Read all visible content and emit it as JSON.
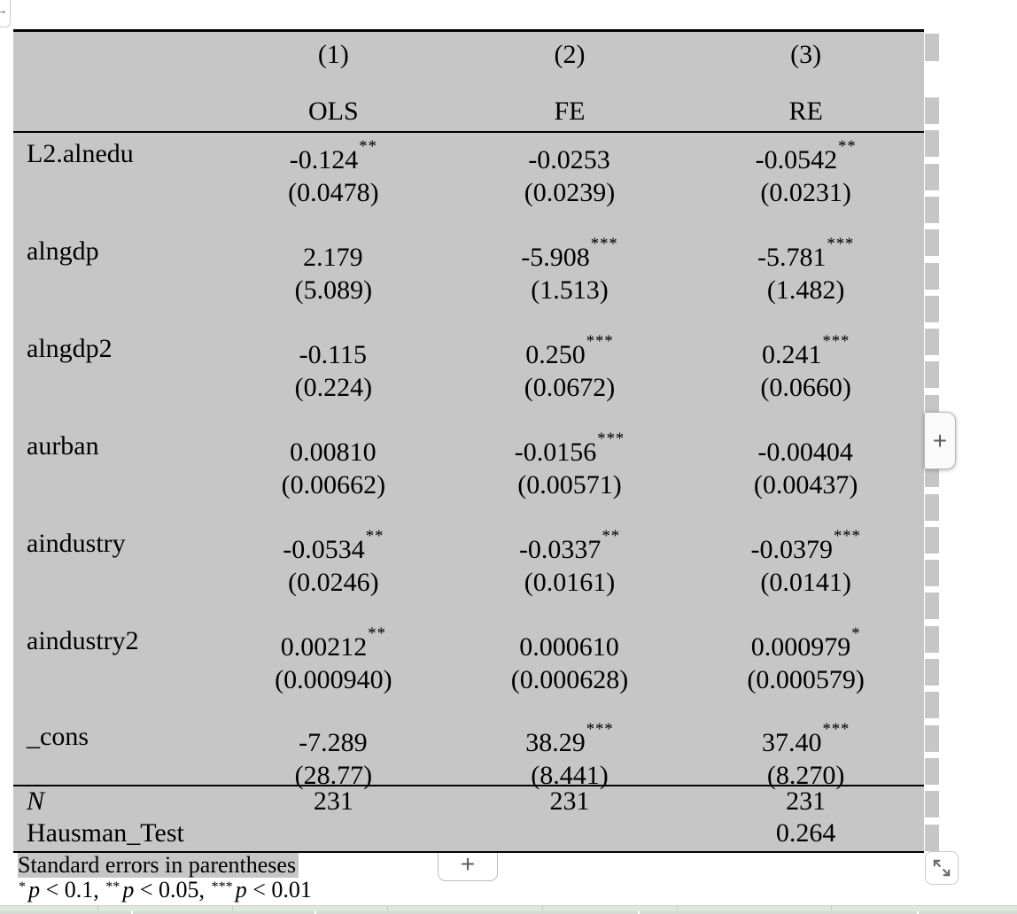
{
  "table": {
    "columns": [
      "(1)",
      "(2)",
      "(3)"
    ],
    "models": [
      "OLS",
      "FE",
      "RE"
    ],
    "rows": [
      {
        "label": "L2.alnedu",
        "cells": [
          {
            "coef": "-0.124",
            "stars": "**",
            "se": "(0.0478)"
          },
          {
            "coef": "-0.0253",
            "stars": "",
            "se": "(0.0239)"
          },
          {
            "coef": "-0.0542",
            "stars": "**",
            "se": "(0.0231)"
          }
        ]
      },
      {
        "label": "alngdp",
        "cells": [
          {
            "coef": "2.179",
            "stars": "",
            "se": "(5.089)"
          },
          {
            "coef": "-5.908",
            "stars": "***",
            "se": "(1.513)"
          },
          {
            "coef": "-5.781",
            "stars": "***",
            "se": "(1.482)"
          }
        ]
      },
      {
        "label": "alngdp2",
        "cells": [
          {
            "coef": "-0.115",
            "stars": "",
            "se": "(0.224)"
          },
          {
            "coef": "0.250",
            "stars": "***",
            "se": "(0.0672)"
          },
          {
            "coef": "0.241",
            "stars": "***",
            "se": "(0.0660)"
          }
        ]
      },
      {
        "label": "aurban",
        "cells": [
          {
            "coef": "0.00810",
            "stars": "",
            "se": "(0.00662)"
          },
          {
            "coef": "-0.0156",
            "stars": "***",
            "se": "(0.00571)"
          },
          {
            "coef": "-0.00404",
            "stars": "",
            "se": "(0.00437)"
          }
        ]
      },
      {
        "label": "aindustry",
        "cells": [
          {
            "coef": "-0.0534",
            "stars": "**",
            "se": "(0.0246)"
          },
          {
            "coef": "-0.0337",
            "stars": "**",
            "se": "(0.0161)"
          },
          {
            "coef": "-0.0379",
            "stars": "***",
            "se": "(0.0141)"
          }
        ]
      },
      {
        "label": "aindustry2",
        "cells": [
          {
            "coef": "0.00212",
            "stars": "**",
            "se": "(0.000940)"
          },
          {
            "coef": "0.000610",
            "stars": "",
            "se": "(0.000628)"
          },
          {
            "coef": "0.000979",
            "stars": "*",
            "se": "(0.000579)"
          }
        ]
      },
      {
        "label": "_cons",
        "cells": [
          {
            "coef": "-7.289",
            "stars": "",
            "se": "(28.77)"
          },
          {
            "coef": "38.29",
            "stars": "***",
            "se": "(8.441)"
          },
          {
            "coef": "37.40",
            "stars": "***",
            "se": "(8.270)"
          }
        ]
      }
    ],
    "stats": [
      {
        "label": "N",
        "values": [
          "231",
          "231",
          "231"
        ]
      },
      {
        "label": "Hausman_Test",
        "values": [
          "",
          "",
          "0.264"
        ]
      }
    ],
    "note": "Standard errors in parentheses",
    "sig_parts": [
      {
        "stars": "*",
        "pvar": "p",
        "cmp": " < 0.1, "
      },
      {
        "stars": "**",
        "pvar": "p",
        "cmp": " < 0.05, "
      },
      {
        "stars": "***",
        "pvar": "p",
        "cmp": " < 0.01"
      }
    ]
  },
  "controls": {
    "nav_arrow": "→",
    "add_column_label": "+",
    "add_row_label": "+"
  },
  "colors": {
    "table_bg": "#c6c6c6",
    "note_highlight_bg": "#c6c6c6",
    "strip_green": "#dcebd8"
  }
}
